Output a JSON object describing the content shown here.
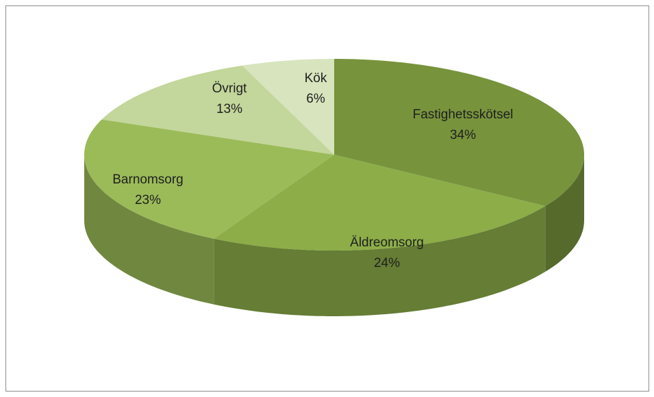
{
  "chart_data": {
    "type": "pie",
    "categories": [
      "Fastighetsskötsel",
      "Äldreomsorg",
      "Barnomsorg",
      "Övrigt",
      "Kök"
    ],
    "values": [
      34,
      24,
      23,
      13,
      6
    ],
    "value_labels": [
      "34%",
      "24%",
      "23%",
      "13%",
      "6%"
    ],
    "colors": [
      "#77933c",
      "#8cad48",
      "#9bbb59",
      "#c3d69b",
      "#d7e4bd"
    ]
  }
}
